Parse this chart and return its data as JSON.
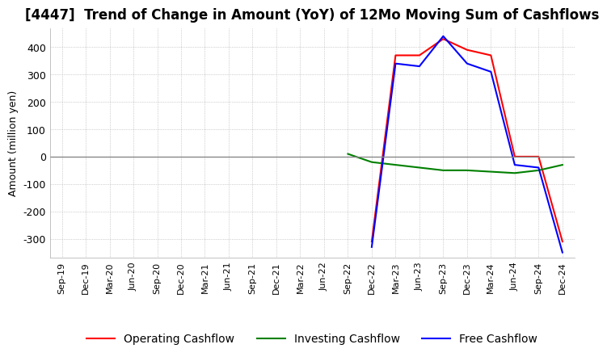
{
  "title": "[4447]  Trend of Change in Amount (YoY) of 12Mo Moving Sum of Cashflows",
  "ylabel": "Amount (million yen)",
  "x_labels": [
    "Sep-19",
    "Dec-19",
    "Mar-20",
    "Jun-20",
    "Sep-20",
    "Dec-20",
    "Mar-21",
    "Jun-21",
    "Sep-21",
    "Dec-21",
    "Mar-22",
    "Jun-22",
    "Sep-22",
    "Dec-22",
    "Mar-23",
    "Jun-23",
    "Sep-23",
    "Dec-23",
    "Mar-24",
    "Jun-24",
    "Sep-24",
    "Dec-24"
  ],
  "operating_cashflow": [
    null,
    null,
    null,
    null,
    null,
    null,
    null,
    null,
    null,
    null,
    null,
    null,
    null,
    -310,
    370,
    370,
    430,
    390,
    370,
    0,
    0,
    -310
  ],
  "investing_cashflow": [
    null,
    null,
    null,
    null,
    null,
    null,
    null,
    null,
    null,
    null,
    null,
    null,
    10,
    -20,
    -30,
    -40,
    -50,
    -50,
    -55,
    -60,
    -50,
    -30
  ],
  "free_cashflow": [
    null,
    null,
    null,
    null,
    null,
    null,
    null,
    null,
    null,
    null,
    null,
    null,
    null,
    -330,
    340,
    330,
    440,
    340,
    310,
    -30,
    -40,
    -350
  ],
  "ylim": [
    -370,
    470
  ],
  "yticks": [
    -300,
    -200,
    -100,
    0,
    100,
    200,
    300,
    400
  ],
  "operating_color": "#ff0000",
  "investing_color": "#008000",
  "free_color": "#0000ff",
  "background_color": "#ffffff",
  "grid_color": "#aaaaaa",
  "title_fontsize": 12,
  "axis_fontsize": 9,
  "legend_fontsize": 10
}
